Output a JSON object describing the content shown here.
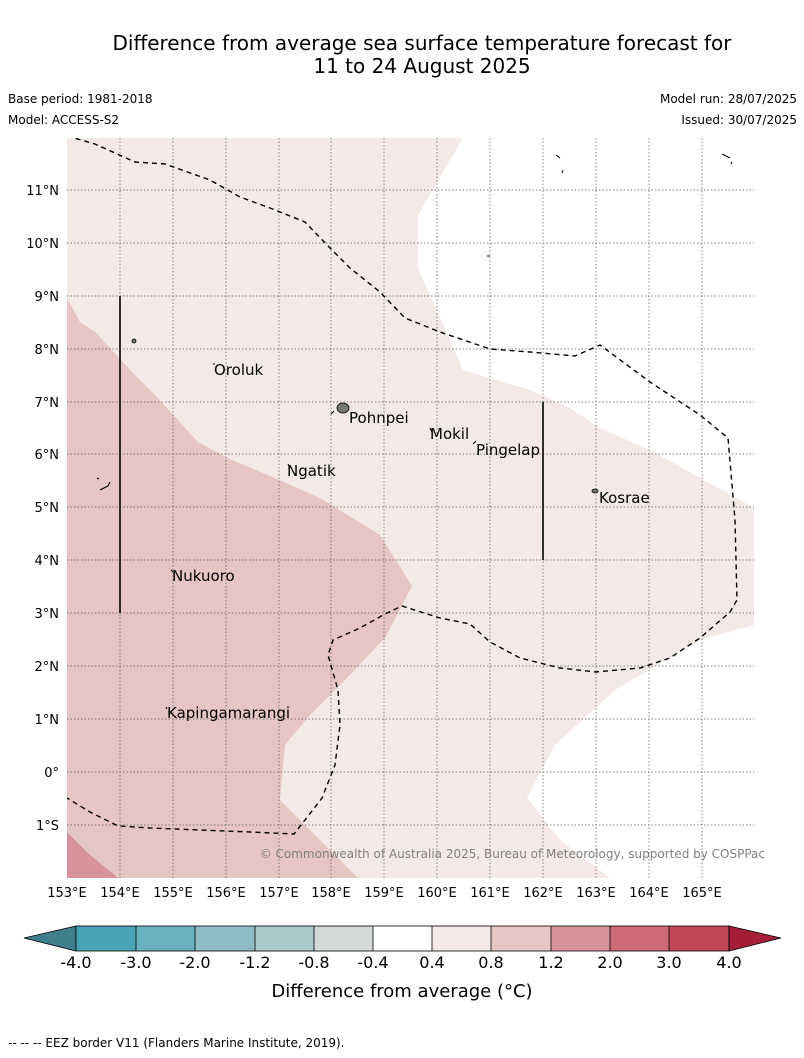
{
  "title": {
    "line1": "Difference from average sea surface temperature forecast for",
    "line2": "11 to 24 August 2025"
  },
  "meta": {
    "base_period": "Base period: 1981-2018",
    "model": "Model: ACCESS-S2",
    "model_run": "Model run: 28/07/2025",
    "issued": "Issued: 30/07/2025"
  },
  "map": {
    "lon_labels": [
      "153°E",
      "154°E",
      "155°E",
      "156°E",
      "157°E",
      "158°E",
      "159°E",
      "160°E",
      "161°E",
      "162°E",
      "163°E",
      "164°E",
      "165°E"
    ],
    "lat_labels": [
      "11°N",
      "10°N",
      "9°N",
      "8°N",
      "7°N",
      "6°N",
      "5°N",
      "4°N",
      "3°N",
      "2°N",
      "1°N",
      "0°",
      "1°S"
    ],
    "places": [
      {
        "name": "Oroluk"
      },
      {
        "name": "Pohnpei"
      },
      {
        "name": "Mokil"
      },
      {
        "name": "Pingelap"
      },
      {
        "name": "Ngatik"
      },
      {
        "name": "Kosrae"
      },
      {
        "name": "Nukuoro"
      },
      {
        "name": "Kapingamarangi"
      }
    ],
    "copyright": "© Commonwealth of Australia 2025, Bureau of Meteorology, supported by COSPPac"
  },
  "colorbar": {
    "ticks": [
      "-4.0",
      "-3.0",
      "-2.0",
      "-1.2",
      "-0.8",
      "-0.4",
      "0.4",
      "0.8",
      "1.2",
      "2.0",
      "3.0",
      "4.0"
    ],
    "colors": [
      "#3f7f8c",
      "#4aa3b5",
      "#6ab1c0",
      "#8fbcc6",
      "#a9c9cc",
      "#d4d8d8",
      "#ffffff",
      "#f5e9e8",
      "#e6c6c2",
      "#d8939a",
      "#cd6a76",
      "#bf4756",
      "#a51d36"
    ],
    "label": "Difference from average (°C)"
  },
  "footer": "--  --  -- EEZ border V11 (Flanders Marine Institute, 2019)."
}
